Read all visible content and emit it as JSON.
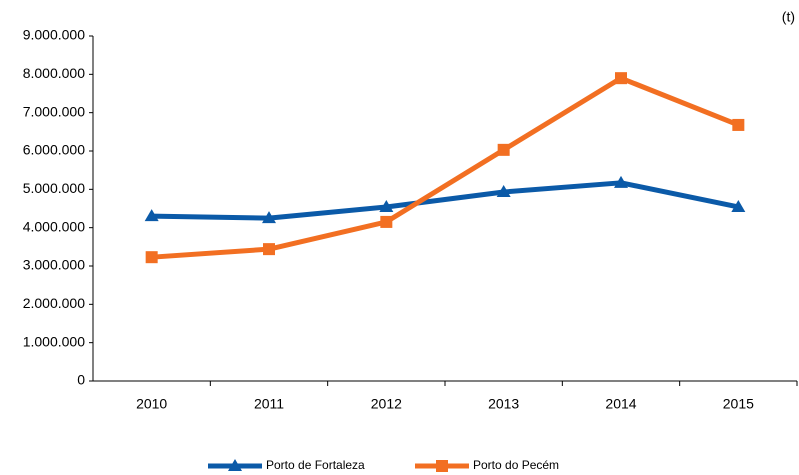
{
  "chart_data": {
    "type": "line",
    "unit": "(t)",
    "categories": [
      "2010",
      "2011",
      "2012",
      "2013",
      "2014",
      "2015"
    ],
    "series": [
      {
        "name": "Porto de Fortaleza",
        "color": "#0b5aa8",
        "marker": "triangle",
        "values": [
          4300000,
          4250000,
          4540000,
          4930000,
          5170000,
          4540000
        ]
      },
      {
        "name": "Porto do Pecém",
        "color": "#f26f22",
        "marker": "square",
        "values": [
          3230000,
          3440000,
          4150000,
          6030000,
          7900000,
          6680000
        ]
      }
    ],
    "ylim": [
      0,
      9000000
    ],
    "yticks": [
      0,
      {
        "value": 1000000,
        "label": "1.000.000"
      },
      {
        "value": 2000000,
        "label": "2.000.000"
      },
      {
        "value": 3000000,
        "label": "3.000.000"
      },
      {
        "value": 4000000,
        "label": "4.000.000"
      },
      {
        "value": 5000000,
        "label": "5.000.000"
      },
      {
        "value": 6000000,
        "label": "6.000.000"
      },
      {
        "value": 7000000,
        "label": "7.000.000"
      },
      {
        "value": 8000000,
        "label": "8.000.000"
      },
      {
        "value": 9000000,
        "label": "9.000.000"
      }
    ],
    "grid": false,
    "legend": "bottom"
  }
}
